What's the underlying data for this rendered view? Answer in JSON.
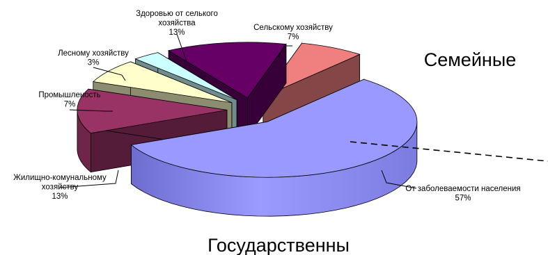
{
  "chart_data": {
    "type": "pie",
    "title": "",
    "series": [
      {
        "name": "Сельскому хозяйству",
        "value": 7,
        "label": "7%",
        "color": "#f08080",
        "name_lines": [
          "Сельскому хозяйству"
        ]
      },
      {
        "name": "От заболеваемости населения",
        "value": 57,
        "label": "57%",
        "color": "#9999ff",
        "name_lines": [
          "От заболеваемости населения"
        ]
      },
      {
        "name": "Жилищно-комунальному хозяйству",
        "value": 13,
        "label": "13%",
        "color": "#993366",
        "name_lines": [
          "Жилищно-комунальному",
          "хозяйству"
        ]
      },
      {
        "name": "Промышленость",
        "value": 7,
        "label": "7%",
        "color": "#ffffcc",
        "name_lines": [
          "Промышленость"
        ]
      },
      {
        "name": "Лесному хозяйству",
        "value": 3,
        "label": "3%",
        "color": "#ccffff",
        "name_lines": [
          "Лесному хозяйству"
        ]
      },
      {
        "name": "Здоровью от селького хозяйства",
        "value": 13,
        "label": "13%",
        "color": "#660066",
        "name_lines": [
          "Здоровью от селького",
          "хозяйства"
        ]
      }
    ],
    "annotations": {
      "family": "Семейные",
      "state": "Государственны"
    },
    "style": "3d-exploded"
  }
}
